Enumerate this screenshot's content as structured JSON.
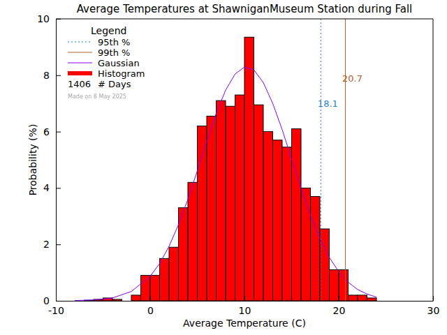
{
  "chart_data": {
    "type": "histogram",
    "title": "Average Temperatures at ShawniganMuseum Station during Fall",
    "x_label": "Average Temperature (C)",
    "y_label": "Probability (%)",
    "name": "Histogram",
    "color": "#ff0000",
    "bins": [
      -7,
      -6,
      -5,
      -4,
      -3,
      -2,
      -1,
      0,
      1,
      2,
      3,
      4,
      5,
      6,
      7,
      8,
      9,
      10,
      11,
      12,
      13,
      14,
      15,
      16,
      17,
      18,
      19,
      20,
      21,
      22,
      23,
      24
    ],
    "values": [
      0.02,
      0.05,
      0.1,
      0.05,
      0,
      0.2,
      0.9,
      0.9,
      1.5,
      1.9,
      3.3,
      4.2,
      6.2,
      6.55,
      7.1,
      6.9,
      7.3,
      9.35,
      6.95,
      6.0,
      5.7,
      5.45,
      6.1,
      4.0,
      3.7,
      2.55,
      1.1,
      1.1,
      0.2,
      0.2,
      0.1
    ],
    "series": [
      {
        "name": "Gaussian",
        "type": "line",
        "color": "#8800ff",
        "line_style": "solid",
        "x": [
          -8,
          -6,
          -4,
          -2,
          0,
          1,
          2,
          3,
          4,
          5,
          6,
          7,
          8,
          9,
          10,
          11,
          12,
          13,
          14,
          15,
          16,
          17,
          18,
          19,
          20,
          21,
          22,
          23,
          24
        ],
        "values": [
          0.01,
          0.03,
          0.1,
          0.33,
          0.87,
          1.32,
          1.93,
          2.7,
          3.6,
          4.61,
          5.66,
          6.65,
          7.47,
          8.04,
          8.29,
          8.19,
          7.74,
          7.0,
          6.07,
          5.03,
          4.0,
          3.04,
          2.22,
          1.54,
          1.03,
          0.66,
          0.4,
          0.24,
          0.13
        ]
      }
    ],
    "reference_lines": [
      {
        "name": "95th %",
        "value": 18.1,
        "color": "#1e7fd0",
        "line_style": "dotted"
      },
      {
        "name": "99th %",
        "value": 20.7,
        "color": "#b0602a",
        "line_style": "solid"
      }
    ],
    "legend": "top-left",
    "legend_title": "Legend",
    "days": {
      "value": 1406,
      "label": "# Days"
    },
    "note": "Made on 8 May 2025",
    "xlim": [
      -10,
      30
    ],
    "ylim": [
      0,
      10
    ],
    "xticks": [
      -10,
      0,
      10,
      20,
      30
    ],
    "yticks": [
      0,
      2,
      4,
      6,
      8,
      10
    ],
    "grid": false
  }
}
